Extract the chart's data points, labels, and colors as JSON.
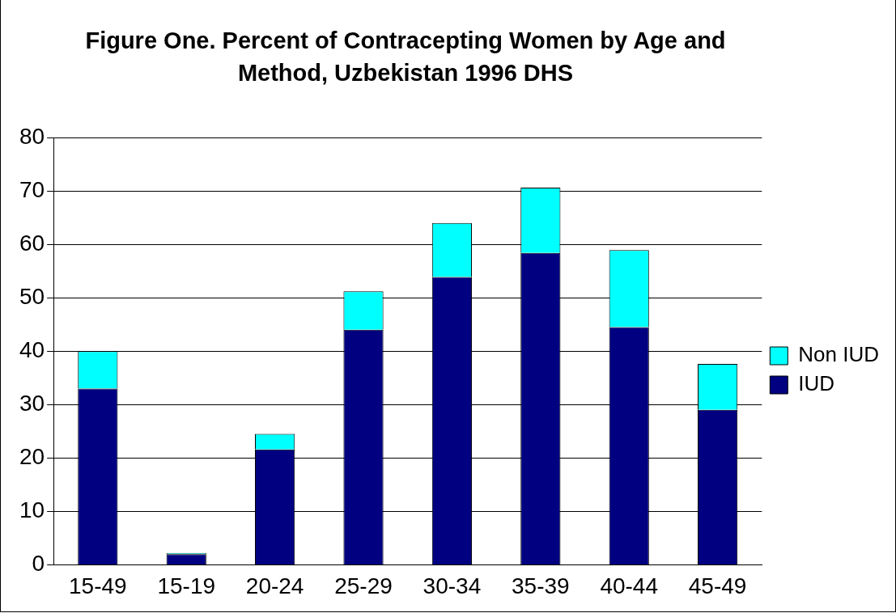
{
  "chart_data": {
    "type": "bar",
    "title": "Figure One. Percent of Contracepting Women by Age and Method, Uzbekistan 1996 DHS",
    "categories": [
      "15-49",
      "15-19",
      "20-24",
      "25-29",
      "30-34",
      "35-39",
      "40-44",
      "45-49"
    ],
    "stacked": true,
    "series": [
      {
        "name": "IUD",
        "color": "#000080",
        "values": [
          33,
          2,
          21.6,
          44,
          53.9,
          58.4,
          44.5,
          29
        ]
      },
      {
        "name": "Non IUD",
        "color": "#00ffff",
        "values": [
          7,
          0.2,
          2.9,
          7.2,
          10.1,
          12.2,
          14.4,
          8.6
        ]
      }
    ],
    "ylim": [
      0,
      80
    ],
    "yticks": [
      0,
      10,
      20,
      30,
      40,
      50,
      60,
      70,
      80
    ],
    "grid": "y",
    "legend": "right"
  }
}
